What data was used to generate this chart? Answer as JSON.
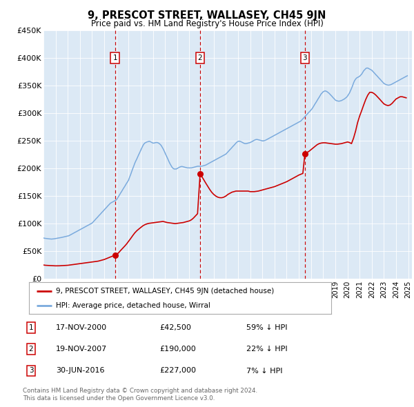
{
  "title": "9, PRESCOT STREET, WALLASEY, CH45 9JN",
  "subtitle": "Price paid vs. HM Land Registry's House Price Index (HPI)",
  "ylim": [
    0,
    450000
  ],
  "yticks": [
    0,
    50000,
    100000,
    150000,
    200000,
    250000,
    300000,
    350000,
    400000,
    450000
  ],
  "ytick_labels": [
    "£0",
    "£50K",
    "£100K",
    "£150K",
    "£200K",
    "£250K",
    "£300K",
    "£350K",
    "£400K",
    "£450K"
  ],
  "xlim_start": 1995.0,
  "xlim_end": 2025.3,
  "bg_color": "#dce9f5",
  "sale_color": "#cc0000",
  "hpi_color": "#7aaadd",
  "sales": [
    {
      "date_num": 2000.88,
      "price": 42500,
      "label": "1"
    },
    {
      "date_num": 2007.88,
      "price": 190000,
      "label": "2"
    },
    {
      "date_num": 2016.5,
      "price": 227000,
      "label": "3"
    }
  ],
  "table_rows": [
    {
      "num": "1",
      "date": "17-NOV-2000",
      "price": "£42,500",
      "vs_hpi": "59% ↓ HPI"
    },
    {
      "num": "2",
      "date": "19-NOV-2007",
      "price": "£190,000",
      "vs_hpi": "22% ↓ HPI"
    },
    {
      "num": "3",
      "date": "30-JUN-2016",
      "price": "£227,000",
      "vs_hpi": "7% ↓ HPI"
    }
  ],
  "legend_entries": [
    {
      "label": "9, PRESCOT STREET, WALLASEY, CH45 9JN (detached house)",
      "color": "#cc0000"
    },
    {
      "label": "HPI: Average price, detached house, Wirral",
      "color": "#7aaadd"
    }
  ],
  "footnote": "Contains HM Land Registry data © Crown copyright and database right 2024.\nThis data is licensed under the Open Government Licence v3.0.",
  "hpi_data_years": [
    1995.0,
    1995.08,
    1995.17,
    1995.25,
    1995.33,
    1995.42,
    1995.5,
    1995.58,
    1995.67,
    1995.75,
    1995.83,
    1995.92,
    1996.0,
    1996.08,
    1996.17,
    1996.25,
    1996.33,
    1996.42,
    1996.5,
    1996.58,
    1996.67,
    1996.75,
    1996.83,
    1996.92,
    1997.0,
    1997.08,
    1997.17,
    1997.25,
    1997.33,
    1997.42,
    1997.5,
    1997.58,
    1997.67,
    1997.75,
    1997.83,
    1997.92,
    1998.0,
    1998.08,
    1998.17,
    1998.25,
    1998.33,
    1998.42,
    1998.5,
    1998.58,
    1998.67,
    1998.75,
    1998.83,
    1998.92,
    1999.0,
    1999.08,
    1999.17,
    1999.25,
    1999.33,
    1999.42,
    1999.5,
    1999.58,
    1999.67,
    1999.75,
    1999.83,
    1999.92,
    2000.0,
    2000.08,
    2000.17,
    2000.25,
    2000.33,
    2000.42,
    2000.5,
    2000.58,
    2000.67,
    2000.75,
    2000.83,
    2000.92,
    2001.0,
    2001.08,
    2001.17,
    2001.25,
    2001.33,
    2001.42,
    2001.5,
    2001.58,
    2001.67,
    2001.75,
    2001.83,
    2001.92,
    2002.0,
    2002.08,
    2002.17,
    2002.25,
    2002.33,
    2002.42,
    2002.5,
    2002.58,
    2002.67,
    2002.75,
    2002.83,
    2002.92,
    2003.0,
    2003.08,
    2003.17,
    2003.25,
    2003.33,
    2003.42,
    2003.5,
    2003.58,
    2003.67,
    2003.75,
    2003.83,
    2003.92,
    2004.0,
    2004.08,
    2004.17,
    2004.25,
    2004.33,
    2004.42,
    2004.5,
    2004.58,
    2004.67,
    2004.75,
    2004.83,
    2004.92,
    2005.0,
    2005.08,
    2005.17,
    2005.25,
    2005.33,
    2005.42,
    2005.5,
    2005.58,
    2005.67,
    2005.75,
    2005.83,
    2005.92,
    2006.0,
    2006.08,
    2006.17,
    2006.25,
    2006.33,
    2006.42,
    2006.5,
    2006.58,
    2006.67,
    2006.75,
    2006.83,
    2006.92,
    2007.0,
    2007.08,
    2007.17,
    2007.25,
    2007.33,
    2007.42,
    2007.5,
    2007.58,
    2007.67,
    2007.75,
    2007.83,
    2007.92,
    2008.0,
    2008.08,
    2008.17,
    2008.25,
    2008.33,
    2008.42,
    2008.5,
    2008.58,
    2008.67,
    2008.75,
    2008.83,
    2008.92,
    2009.0,
    2009.08,
    2009.17,
    2009.25,
    2009.33,
    2009.42,
    2009.5,
    2009.58,
    2009.67,
    2009.75,
    2009.83,
    2009.92,
    2010.0,
    2010.08,
    2010.17,
    2010.25,
    2010.33,
    2010.42,
    2010.5,
    2010.58,
    2010.67,
    2010.75,
    2010.83,
    2010.92,
    2011.0,
    2011.08,
    2011.17,
    2011.25,
    2011.33,
    2011.42,
    2011.5,
    2011.58,
    2011.67,
    2011.75,
    2011.83,
    2011.92,
    2012.0,
    2012.08,
    2012.17,
    2012.25,
    2012.33,
    2012.42,
    2012.5,
    2012.58,
    2012.67,
    2012.75,
    2012.83,
    2012.92,
    2013.0,
    2013.08,
    2013.17,
    2013.25,
    2013.33,
    2013.42,
    2013.5,
    2013.58,
    2013.67,
    2013.75,
    2013.83,
    2013.92,
    2014.0,
    2014.08,
    2014.17,
    2014.25,
    2014.33,
    2014.42,
    2014.5,
    2014.58,
    2014.67,
    2014.75,
    2014.83,
    2014.92,
    2015.0,
    2015.08,
    2015.17,
    2015.25,
    2015.33,
    2015.42,
    2015.5,
    2015.58,
    2015.67,
    2015.75,
    2015.83,
    2015.92,
    2016.0,
    2016.08,
    2016.17,
    2016.25,
    2016.33,
    2016.42,
    2016.5,
    2016.58,
    2016.67,
    2016.75,
    2016.83,
    2016.92,
    2017.0,
    2017.08,
    2017.17,
    2017.25,
    2017.33,
    2017.42,
    2017.5,
    2017.58,
    2017.67,
    2017.75,
    2017.83,
    2017.92,
    2018.0,
    2018.08,
    2018.17,
    2018.25,
    2018.33,
    2018.42,
    2018.5,
    2018.58,
    2018.67,
    2018.75,
    2018.83,
    2018.92,
    2019.0,
    2019.08,
    2019.17,
    2019.25,
    2019.33,
    2019.42,
    2019.5,
    2019.58,
    2019.67,
    2019.75,
    2019.83,
    2019.92,
    2020.0,
    2020.08,
    2020.17,
    2020.25,
    2020.33,
    2020.42,
    2020.5,
    2020.58,
    2020.67,
    2020.75,
    2020.83,
    2020.92,
    2021.0,
    2021.08,
    2021.17,
    2021.25,
    2021.33,
    2021.42,
    2021.5,
    2021.58,
    2021.67,
    2021.75,
    2021.83,
    2021.92,
    2022.0,
    2022.08,
    2022.17,
    2022.25,
    2022.33,
    2022.42,
    2022.5,
    2022.58,
    2022.67,
    2022.75,
    2022.83,
    2022.92,
    2023.0,
    2023.08,
    2023.17,
    2023.25,
    2023.33,
    2023.42,
    2023.5,
    2023.58,
    2023.67,
    2023.75,
    2023.83,
    2023.92,
    2024.0,
    2024.08,
    2024.17,
    2024.25,
    2024.33,
    2024.42,
    2024.5,
    2024.58,
    2024.67,
    2024.75,
    2024.83,
    2024.92
  ],
  "hpi_data_values": [
    74000,
    73500,
    73200,
    73000,
    72800,
    72500,
    72300,
    72100,
    72000,
    72200,
    72400,
    72600,
    73000,
    73300,
    73600,
    74000,
    74300,
    74600,
    75000,
    75400,
    75800,
    76200,
    76600,
    77000,
    77500,
    78000,
    79000,
    80000,
    81000,
    82000,
    83000,
    84000,
    85000,
    86000,
    87000,
    88000,
    89000,
    90000,
    91000,
    92000,
    93000,
    94000,
    95000,
    96000,
    97000,
    98000,
    99000,
    100000,
    101000,
    103000,
    105000,
    107000,
    109000,
    111000,
    113000,
    115000,
    117000,
    119000,
    121000,
    123000,
    125000,
    127000,
    129000,
    131000,
    133000,
    135000,
    137000,
    138000,
    139000,
    140000,
    141000,
    142000,
    143000,
    146000,
    149000,
    152000,
    155000,
    158000,
    161000,
    164000,
    167000,
    170000,
    173000,
    176000,
    179000,
    184000,
    189000,
    194000,
    199000,
    204000,
    209000,
    213000,
    217000,
    221000,
    225000,
    229000,
    233000,
    237000,
    241000,
    244000,
    246000,
    247000,
    248000,
    248500,
    249000,
    249000,
    248000,
    247000,
    246000,
    246000,
    246500,
    247000,
    247000,
    246500,
    245500,
    244000,
    242000,
    239000,
    236000,
    232000,
    228000,
    224000,
    220000,
    216000,
    212000,
    208000,
    205000,
    202000,
    200000,
    199000,
    199000,
    199000,
    200000,
    201000,
    202000,
    203000,
    203500,
    203500,
    203000,
    202500,
    202000,
    201500,
    201000,
    201000,
    201000,
    201000,
    201000,
    201500,
    202000,
    202500,
    203000,
    203500,
    204000,
    204000,
    204000,
    204000,
    204000,
    204500,
    205000,
    205500,
    206000,
    207000,
    208000,
    209000,
    210000,
    211000,
    212000,
    213000,
    214000,
    215000,
    216000,
    217000,
    218000,
    219000,
    220000,
    221000,
    222000,
    223000,
    224000,
    225000,
    226000,
    228000,
    230000,
    232000,
    234000,
    236000,
    238000,
    240000,
    242000,
    244000,
    246000,
    248000,
    249000,
    249500,
    249000,
    248500,
    247500,
    246500,
    245500,
    245000,
    245000,
    245500,
    246000,
    246500,
    247000,
    248000,
    249000,
    250000,
    251000,
    252000,
    252500,
    252500,
    252000,
    251500,
    251000,
    250500,
    250000,
    250000,
    250500,
    251000,
    252000,
    253000,
    254000,
    255000,
    256000,
    257000,
    258000,
    259000,
    260000,
    261000,
    262000,
    263000,
    264000,
    265000,
    266000,
    267000,
    268000,
    269000,
    270000,
    271000,
    272000,
    273000,
    274000,
    275000,
    276000,
    277000,
    278000,
    279000,
    280000,
    281000,
    282000,
    283000,
    284000,
    285000,
    286000,
    288000,
    290000,
    292000,
    294000,
    296000,
    298000,
    300000,
    302000,
    304000,
    306000,
    308000,
    311000,
    314000,
    317000,
    320000,
    323000,
    326000,
    329000,
    332000,
    335000,
    337000,
    339000,
    340000,
    340500,
    340000,
    339000,
    337500,
    336000,
    334000,
    332000,
    330000,
    328000,
    326000,
    324000,
    323000,
    322500,
    322000,
    322000,
    322500,
    323000,
    324000,
    325000,
    326000,
    327500,
    329000,
    331000,
    334000,
    337000,
    341000,
    345000,
    350000,
    355000,
    359000,
    362000,
    364000,
    365000,
    366000,
    367000,
    369000,
    371000,
    374000,
    377000,
    379000,
    381000,
    382000,
    382000,
    381000,
    380000,
    379000,
    378000,
    376000,
    374000,
    372000,
    370000,
    368000,
    366000,
    364000,
    362000,
    360000,
    358000,
    356000,
    354000,
    353000,
    352000,
    351500,
    351000,
    351000,
    351500,
    352000,
    353000,
    354000,
    355000,
    356000,
    357000,
    358000,
    359000,
    360000,
    361000,
    362000,
    363000,
    364000,
    365000,
    366000,
    367000,
    368000
  ],
  "red_line_years": [
    1995.0,
    1995.17,
    1995.33,
    1995.5,
    1995.67,
    1995.83,
    1996.0,
    1996.17,
    1996.33,
    1996.5,
    1996.67,
    1996.83,
    1997.0,
    1997.17,
    1997.33,
    1997.5,
    1997.67,
    1997.83,
    1998.0,
    1998.17,
    1998.33,
    1998.5,
    1998.67,
    1998.83,
    1999.0,
    1999.17,
    1999.33,
    1999.5,
    1999.67,
    1999.83,
    2000.0,
    2000.17,
    2000.33,
    2000.5,
    2000.67,
    2000.88,
    2000.88,
    2001.0,
    2001.17,
    2001.33,
    2001.5,
    2001.67,
    2001.83,
    2002.0,
    2002.17,
    2002.33,
    2002.5,
    2002.67,
    2002.83,
    2003.0,
    2003.17,
    2003.33,
    2003.5,
    2003.67,
    2003.83,
    2004.0,
    2004.17,
    2004.33,
    2004.5,
    2004.67,
    2004.83,
    2005.0,
    2005.17,
    2005.33,
    2005.5,
    2005.67,
    2005.83,
    2006.0,
    2006.17,
    2006.33,
    2006.5,
    2006.67,
    2006.83,
    2007.0,
    2007.17,
    2007.33,
    2007.5,
    2007.67,
    2007.88,
    2007.88,
    2008.0,
    2008.17,
    2008.33,
    2008.5,
    2008.67,
    2008.83,
    2009.0,
    2009.17,
    2009.33,
    2009.5,
    2009.67,
    2009.83,
    2010.0,
    2010.17,
    2010.33,
    2010.5,
    2010.67,
    2010.83,
    2011.0,
    2011.17,
    2011.33,
    2011.5,
    2011.67,
    2011.83,
    2012.0,
    2012.17,
    2012.33,
    2012.5,
    2012.67,
    2012.83,
    2013.0,
    2013.17,
    2013.33,
    2013.5,
    2013.67,
    2013.83,
    2014.0,
    2014.17,
    2014.33,
    2014.5,
    2014.67,
    2014.83,
    2015.0,
    2015.17,
    2015.33,
    2015.5,
    2015.67,
    2015.83,
    2016.0,
    2016.17,
    2016.33,
    2016.5,
    2016.5,
    2016.67,
    2016.83,
    2017.0,
    2017.17,
    2017.33,
    2017.5,
    2017.67,
    2017.83,
    2018.0,
    2018.17,
    2018.33,
    2018.5,
    2018.67,
    2018.83,
    2019.0,
    2019.17,
    2019.33,
    2019.5,
    2019.67,
    2019.83,
    2020.0,
    2020.17,
    2020.33,
    2020.5,
    2020.67,
    2020.83,
    2021.0,
    2021.17,
    2021.33,
    2021.5,
    2021.67,
    2021.83,
    2022.0,
    2022.17,
    2022.33,
    2022.5,
    2022.67,
    2022.83,
    2023.0,
    2023.17,
    2023.33,
    2023.5,
    2023.67,
    2023.83,
    2024.0,
    2024.17,
    2024.33,
    2024.5,
    2024.67,
    2024.83
  ],
  "red_line_values": [
    25000,
    24500,
    24200,
    24000,
    23800,
    23600,
    23500,
    23500,
    23600,
    23800,
    24000,
    24200,
    24500,
    25000,
    25500,
    26000,
    26500,
    27000,
    27500,
    28000,
    28500,
    29000,
    29500,
    30000,
    30500,
    31000,
    31500,
    32000,
    33000,
    34000,
    35000,
    36500,
    38000,
    39500,
    41000,
    42500,
    42500,
    44000,
    47000,
    51000,
    55000,
    59000,
    63000,
    68000,
    73000,
    78000,
    83000,
    87000,
    90000,
    93000,
    96000,
    98000,
    99500,
    100500,
    101000,
    101500,
    102000,
    102500,
    103000,
    103500,
    104000,
    103000,
    102000,
    101500,
    101000,
    100500,
    100000,
    100500,
    101000,
    101500,
    102000,
    103000,
    104000,
    105000,
    107000,
    110000,
    114000,
    118000,
    190000,
    190000,
    186000,
    180000,
    174000,
    168000,
    162000,
    157000,
    153000,
    150000,
    148000,
    147000,
    147000,
    148000,
    150000,
    153000,
    155000,
    157000,
    158000,
    159000,
    159000,
    159000,
    159000,
    159000,
    159000,
    159000,
    158000,
    158000,
    158000,
    158500,
    159000,
    160000,
    161000,
    162000,
    163000,
    164000,
    165000,
    166000,
    167000,
    168500,
    170000,
    171500,
    173000,
    174500,
    176000,
    178000,
    180000,
    182000,
    184000,
    186000,
    188000,
    189500,
    191000,
    227000,
    227000,
    229000,
    231000,
    234000,
    237000,
    240000,
    243000,
    245000,
    246000,
    246500,
    246500,
    246000,
    245500,
    245000,
    244500,
    244000,
    244000,
    244500,
    245000,
    246000,
    247000,
    248000,
    247000,
    245000,
    255000,
    268000,
    283000,
    295000,
    305000,
    315000,
    325000,
    333000,
    338000,
    338000,
    336000,
    333000,
    329000,
    325000,
    321000,
    317000,
    315000,
    314000,
    315000,
    318000,
    322000,
    326000,
    328000,
    330000,
    330000,
    329000,
    328000
  ]
}
